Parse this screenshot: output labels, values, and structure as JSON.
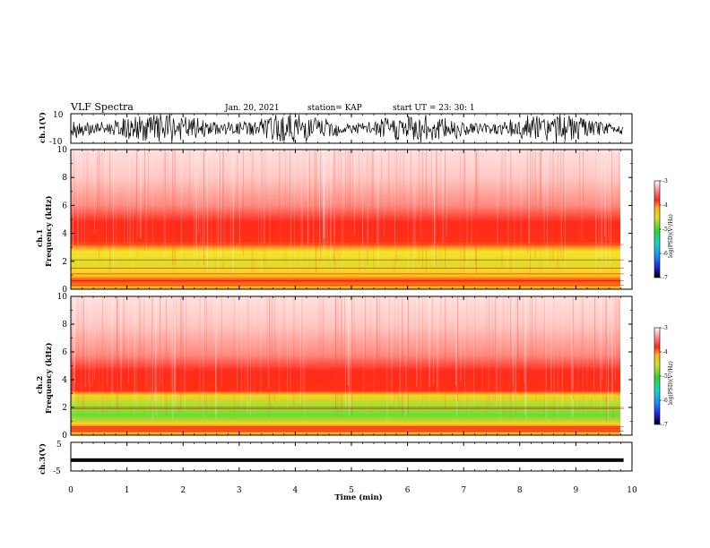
{
  "header": {
    "title": "VLF Spectra",
    "date": "Jan. 20, 2021",
    "station": "station= KAP",
    "start": "start  UT  =   23: 30: 1"
  },
  "colors": {
    "spectro_white": "#ffffff",
    "spectro_red": "#ff2a1a",
    "spectro_yellow": "#ffd21e",
    "spectro_green": "#3cd23c",
    "trace": "#000000"
  },
  "chart_data": [
    {
      "type": "line",
      "panel": "ch1-waveform",
      "ylabel": "ch.1(V)",
      "ylim": [
        -10,
        10
      ],
      "yticks": [
        "10",
        "-10"
      ],
      "x_range_min": [
        0,
        9.85
      ],
      "description_of_signal": "broadband noise spanning most of range"
    },
    {
      "type": "heatmap",
      "panel": "ch1-spectrogram",
      "ylabel": "ch.1 Frequency (kHz)",
      "ylim": [
        0,
        10
      ],
      "yticks": [
        "0",
        "2",
        "4",
        "6",
        "8",
        "10"
      ],
      "x_range_min": [
        0,
        9.85
      ],
      "bands": [
        {
          "from_khz": 0,
          "to_khz": 1.5,
          "level": "yellow"
        },
        {
          "from_khz": 1.5,
          "to_khz": 3.5,
          "level": "yellow-green"
        },
        {
          "from_khz": 3.5,
          "to_khz": 5.0,
          "level": "red"
        },
        {
          "from_khz": 5.0,
          "to_khz": 10,
          "level": "white-red"
        }
      ],
      "colorbar": {
        "label": "log(PSD)(V²/Hz)",
        "ticks": [
          "-3",
          "-4",
          "-5",
          "-6",
          "-7"
        ],
        "range": [
          -7,
          -3
        ]
      }
    },
    {
      "type": "heatmap",
      "panel": "ch2-spectrogram",
      "ylabel": "ch.2 Frequency (kHz)",
      "ylim": [
        0,
        10
      ],
      "yticks": [
        "0",
        "2",
        "4",
        "6",
        "8",
        "10"
      ],
      "x_range_min": [
        0,
        9.85
      ],
      "bands": [
        {
          "from_khz": 0,
          "to_khz": 1.2,
          "level": "yellow"
        },
        {
          "from_khz": 1.2,
          "to_khz": 3.0,
          "level": "green-yellow"
        },
        {
          "from_khz": 3.0,
          "to_khz": 4.8,
          "level": "red"
        },
        {
          "from_khz": 4.8,
          "to_khz": 10,
          "level": "white-red"
        }
      ],
      "colorbar": {
        "label": "log(PSD)(V²/Hz)",
        "ticks": [
          "-3",
          "-4",
          "-5",
          "-6",
          "-7"
        ],
        "range": [
          -7,
          -3
        ]
      }
    },
    {
      "type": "line",
      "panel": "ch3-waveform",
      "ylabel": "ch.3(V)",
      "ylim": [
        -5,
        5
      ],
      "yticks": [
        "5",
        "-5"
      ],
      "x_range_min": [
        0,
        9.85
      ],
      "level_v": -1.2
    }
  ],
  "xaxis": {
    "label": "Time (min)",
    "xlim": [
      0,
      10
    ],
    "ticks": [
      "0",
      "1",
      "2",
      "3",
      "4",
      "5",
      "6",
      "7",
      "8",
      "9",
      "10"
    ]
  }
}
